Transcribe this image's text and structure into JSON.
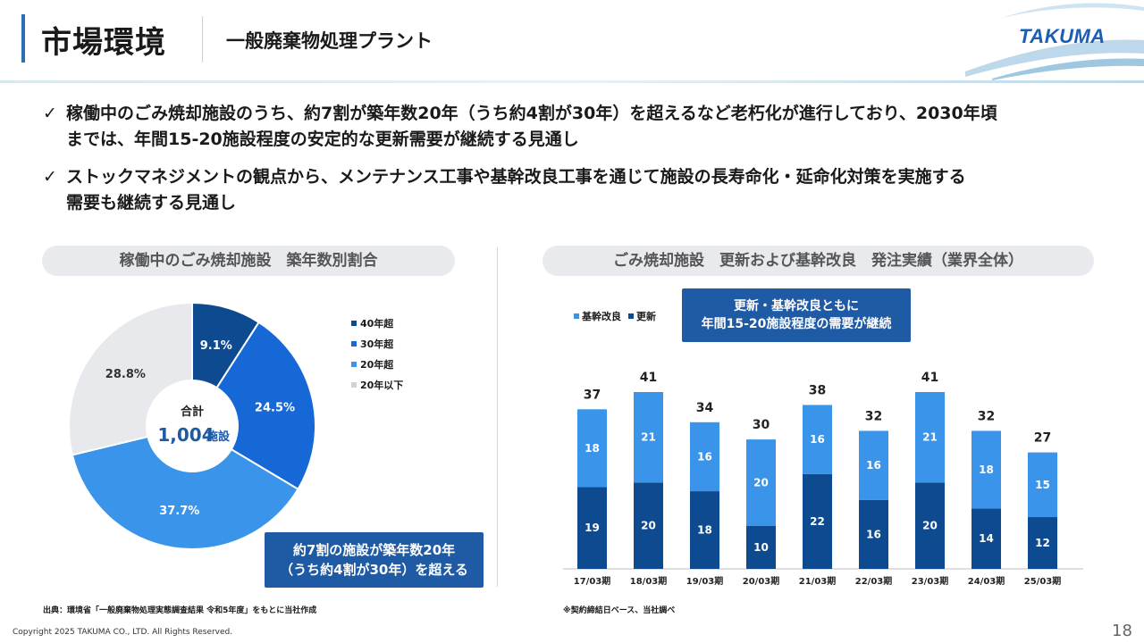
{
  "header": {
    "title": "市場環境",
    "subtitle": "一般廃棄物処理プラント",
    "logo": "TAKUMA"
  },
  "bullets": [
    {
      "mark": "✓",
      "line1": "稼働中のごみ焼却施設のうち、約7割が築年数20年（うち約4割が30年）を超えるなど老朽化が進行しており、2030年頃",
      "line2": "までは、年間15-20施設程度の安定的な更新需要が継続する見通し"
    },
    {
      "mark": "✓",
      "line1": "ストックマネジメントの観点から、メンテナンス工事や基幹改良工事を通じて施設の長寿命化・延命化対策を実施する",
      "line2": "需要も継続する見通し"
    }
  ],
  "left_panel": {
    "heading": "稼働中のごみ焼却施設　築年数別割合",
    "center_label": "合計",
    "center_value": "1,004",
    "center_unit": "施設",
    "callout_line1": "約7割の施設が築年数20年",
    "callout_line2": "（うち約4割が30年）を超える",
    "source": "出典：環境省「一般廃棄物処理実態調査結果 令和5年度」をもとに当社作成"
  },
  "right_panel": {
    "heading": "ごみ焼却施設　更新および基幹改良　発注実績（業界全体）",
    "callout_line1": "更新・基幹改良ともに",
    "callout_line2": "年間15-20施設程度の需要が継続",
    "note": "※契約締結日ベース、当社調べ"
  },
  "footer": {
    "copyright": "Copyright  2025 TAKUMA CO., LTD.  All Rights Reserved.",
    "page": "18"
  },
  "colors": {
    "accent": "#2e6db6",
    "callout": "#1f5aa5",
    "dark_blue": "#0d4a8f",
    "mid_blue": "#1668d6",
    "light_blue": "#3a95ea",
    "grey": "#e8e9ec"
  },
  "chart_data": [
    {
      "type": "pie",
      "title": "稼働中のごみ焼却施設　築年数別割合",
      "categories": [
        "40年超",
        "30年超",
        "20年超",
        "20年以下"
      ],
      "values": [
        9.1,
        24.5,
        37.7,
        28.8
      ],
      "value_labels": [
        "9.1%",
        "24.5%",
        "37.7%",
        "28.8%"
      ],
      "colors": [
        "#0d4a8f",
        "#1668d6",
        "#3a95ea",
        "#e8e9ec"
      ],
      "donut_center": "合計 1,004施設",
      "legend": "right"
    },
    {
      "type": "bar",
      "stacked": true,
      "title": "ごみ焼却施設　更新および基幹改良　発注実績（業界全体）",
      "categories": [
        "17/03期",
        "18/03期",
        "19/03期",
        "20/03期",
        "21/03期",
        "22/03期",
        "23/03期",
        "24/03期",
        "25/03期"
      ],
      "series": [
        {
          "name": "更新",
          "values": [
            19,
            20,
            18,
            10,
            22,
            16,
            20,
            14,
            12
          ],
          "color": "#0d4a8f"
        },
        {
          "name": "基幹改良",
          "values": [
            18,
            21,
            16,
            20,
            16,
            16,
            21,
            18,
            15
          ],
          "color": "#3a95ea"
        }
      ],
      "totals": [
        37,
        41,
        34,
        30,
        38,
        32,
        41,
        32,
        27
      ],
      "legend_order": [
        "基幹改良",
        "更新"
      ],
      "legend": "top-left",
      "ylim": [
        0,
        45
      ],
      "grid": false
    }
  ]
}
